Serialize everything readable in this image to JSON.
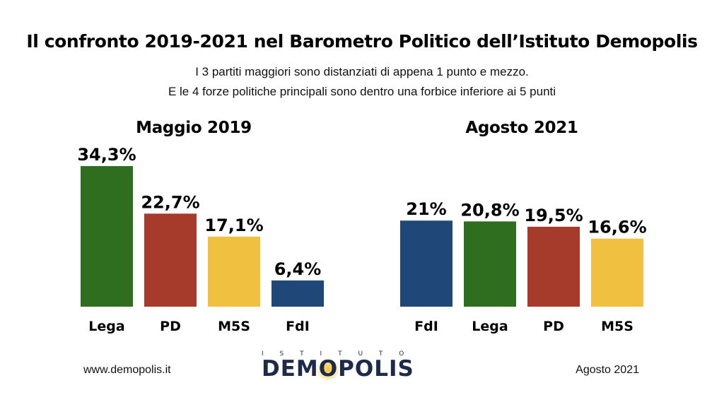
{
  "title": "Il confronto 2019-2021 nel Barometro Politico dell’Istituto Demopolis",
  "subtitle_line1": "I 3 partiti maggiori sono distanziati di appena 1 punto e mezzo.",
  "subtitle_line2": "E le 4 forze politiche principali sono dentro una forbice inferiore ai 5 punti",
  "footer": {
    "website": "www.demopolis.it",
    "date": "Agosto 2021",
    "logo_top": "ISTITUTO",
    "logo_word": "DEMOPOLIS"
  },
  "colors": {
    "Lega": "#2f6e1e",
    "PD": "#a63b2b",
    "M5S": "#f0c141",
    "FdI": "#1f4878"
  },
  "chart_data": [
    {
      "type": "bar",
      "title": "Maggio 2019",
      "categories": [
        "Lega",
        "PD",
        "M5S",
        "FdI"
      ],
      "values": [
        34.3,
        22.7,
        17.1,
        6.4
      ],
      "labels": [
        "34,3%",
        "22,7%",
        "17,1%",
        "6,4%"
      ],
      "colors": [
        "#2f6e1e",
        "#a63b2b",
        "#f0c141",
        "#1f4878"
      ]
    },
    {
      "type": "bar",
      "title": "Agosto 2021",
      "categories": [
        "FdI",
        "Lega",
        "PD",
        "M5S"
      ],
      "values": [
        21,
        20.8,
        19.5,
        16.6
      ],
      "labels": [
        "21%",
        "20,8%",
        "19,5%",
        "16,6%"
      ],
      "colors": [
        "#1f4878",
        "#2f6e1e",
        "#a63b2b",
        "#f0c141"
      ]
    }
  ]
}
